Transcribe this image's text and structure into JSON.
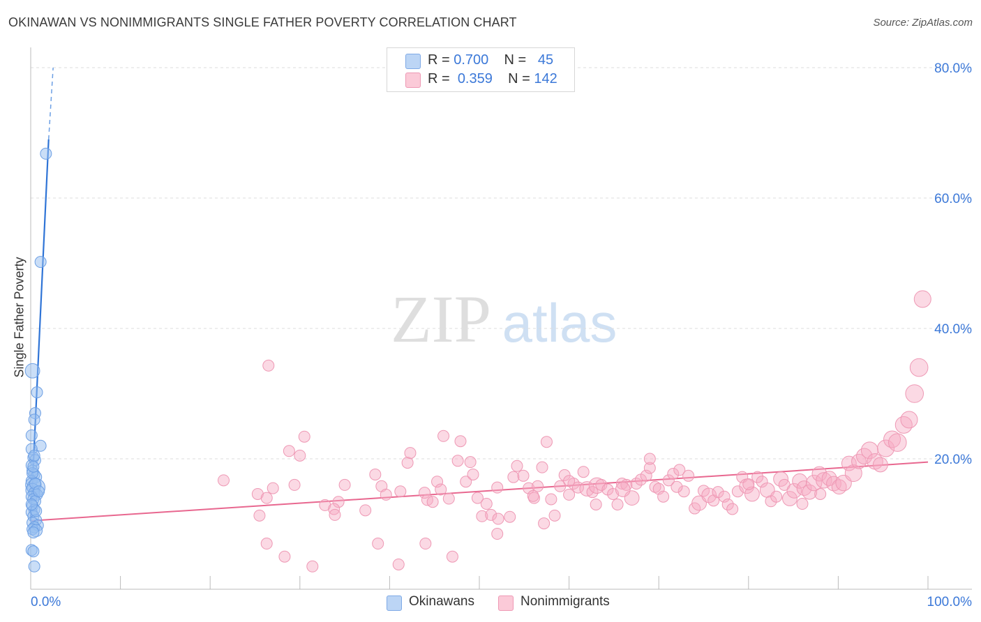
{
  "title": "OKINAWAN VS NONIMMIGRANTS SINGLE FATHER POVERTY CORRELATION CHART",
  "source": "Source: ZipAtlas.com",
  "watermark": {
    "zip": "ZIP",
    "atlas": "atlas"
  },
  "legend_top": [
    {
      "r_label": "R = ",
      "r_value": "0.700",
      "n_label": "N = ",
      "n_value": "45",
      "color": "#a9c8f2"
    },
    {
      "r_label": "R = ",
      "r_value": "0.359",
      "n_label": "N = ",
      "n_value": "142",
      "color": "#f7b8cb"
    }
  ],
  "legend_bottom": [
    {
      "label": "Okinawans",
      "color": "#a9c8f2"
    },
    {
      "label": "Nonimmigrants",
      "color": "#f7b8cb"
    }
  ],
  "chart_data": {
    "type": "scatter",
    "title": "OKINAWAN VS NONIMMIGRANTS SINGLE FATHER POVERTY CORRELATION CHART",
    "xlabel": "",
    "ylabel": "Single Father Poverty",
    "xlim": [
      0,
      100
    ],
    "ylim": [
      0,
      80
    ],
    "x_tick_labels": [
      "0.0%",
      "100.0%"
    ],
    "y_tick_labels": [
      "20.0%",
      "40.0%",
      "60.0%",
      "80.0%"
    ],
    "y_ticks": [
      20,
      40,
      60,
      80
    ],
    "grid": "horizontal dashed",
    "legend_position": "top-center",
    "series": [
      {
        "name": "Okinawans",
        "color": "#5b9be8",
        "trend": {
          "x0": 0.0,
          "y0": 10.5,
          "x1": 2.0,
          "y1": 69.0,
          "dashed_to": [
            2.5,
            80.0
          ]
        },
        "points": [
          [
            1.7,
            66.8,
            1
          ],
          [
            1.1,
            50.2,
            1
          ],
          [
            0.2,
            33.5,
            1.3
          ],
          [
            0.7,
            30.2,
            1
          ],
          [
            0.5,
            27.0,
            1
          ],
          [
            0.4,
            26.0,
            1
          ],
          [
            0.1,
            23.6,
            1
          ],
          [
            1.1,
            22.0,
            1
          ],
          [
            0.1,
            21.5,
            1
          ],
          [
            0.3,
            20.2,
            1
          ],
          [
            0.5,
            19.8,
            1
          ],
          [
            0.1,
            19.0,
            1
          ],
          [
            0.2,
            18.2,
            1
          ],
          [
            0.4,
            17.6,
            1
          ],
          [
            0.6,
            17.2,
            1
          ],
          [
            0.1,
            16.6,
            1
          ],
          [
            0.3,
            16.0,
            1.4
          ],
          [
            0.6,
            15.6,
            1.6
          ],
          [
            0.2,
            15.2,
            1.2
          ],
          [
            0.4,
            14.8,
            1
          ],
          [
            0.7,
            14.5,
            1
          ],
          [
            0.1,
            14.2,
            1
          ],
          [
            0.3,
            13.8,
            1
          ],
          [
            0.5,
            13.5,
            1
          ],
          [
            0.2,
            12.8,
            1
          ],
          [
            0.4,
            12.2,
            1
          ],
          [
            0.1,
            11.8,
            1
          ],
          [
            0.3,
            11.2,
            1
          ],
          [
            0.6,
            10.6,
            1
          ],
          [
            0.2,
            10.2,
            1
          ],
          [
            0.8,
            9.8,
            1
          ],
          [
            0.4,
            9.5,
            1
          ],
          [
            0.2,
            9.2,
            1
          ],
          [
            0.6,
            9.0,
            1.1
          ],
          [
            0.3,
            8.7,
            1
          ],
          [
            0.1,
            6.0,
            1
          ],
          [
            0.3,
            5.8,
            1
          ],
          [
            0.4,
            3.5,
            1
          ],
          [
            0.5,
            16.2,
            1
          ],
          [
            0.2,
            17.8,
            1
          ],
          [
            0.9,
            15.0,
            1
          ],
          [
            0.3,
            18.8,
            1
          ],
          [
            0.6,
            12.0,
            1
          ],
          [
            0.1,
            13.0,
            1
          ],
          [
            0.4,
            20.5,
            1
          ]
        ]
      },
      {
        "name": "Nonimmigrants",
        "color": "#ef7fa3",
        "trend": {
          "x0": 0.0,
          "y0": 10.5,
          "x1": 100.0,
          "y1": 19.5
        },
        "points": [
          [
            26.5,
            34.3,
            1
          ],
          [
            30.5,
            23.4,
            1
          ],
          [
            28.8,
            21.2,
            1
          ],
          [
            30.0,
            20.5,
            1
          ],
          [
            21.5,
            16.7,
            1
          ],
          [
            25.3,
            14.6,
            1
          ],
          [
            26.3,
            14.0,
            1
          ],
          [
            27.0,
            15.5,
            1
          ],
          [
            29.4,
            16.0,
            1
          ],
          [
            25.5,
            11.3,
            1
          ],
          [
            26.3,
            7.0,
            1
          ],
          [
            28.3,
            5.0,
            1
          ],
          [
            32.8,
            12.9,
            1
          ],
          [
            34.3,
            13.4,
            1
          ],
          [
            35.0,
            16.0,
            1
          ],
          [
            37.3,
            12.1,
            1
          ],
          [
            38.4,
            17.6,
            1
          ],
          [
            39.1,
            15.8,
            1
          ],
          [
            39.6,
            14.5,
            1
          ],
          [
            33.8,
            12.3,
            1
          ],
          [
            33.9,
            11.4,
            1
          ],
          [
            31.4,
            3.5,
            1
          ],
          [
            38.7,
            7.0,
            1
          ],
          [
            41.0,
            3.8,
            1
          ],
          [
            41.2,
            15.0,
            1
          ],
          [
            42.0,
            19.4,
            1
          ],
          [
            42.3,
            20.9,
            1
          ],
          [
            43.9,
            14.8,
            1
          ],
          [
            44.2,
            13.7,
            1
          ],
          [
            44.8,
            13.4,
            1
          ],
          [
            44.0,
            7.0,
            1
          ],
          [
            45.3,
            16.5,
            1
          ],
          [
            45.7,
            15.3,
            1
          ],
          [
            46.0,
            23.5,
            1
          ],
          [
            46.6,
            13.9,
            1
          ],
          [
            47.0,
            5.0,
            1
          ],
          [
            47.6,
            19.7,
            1
          ],
          [
            47.9,
            22.7,
            1
          ],
          [
            48.5,
            16.5,
            1
          ],
          [
            49.0,
            19.5,
            1
          ],
          [
            49.3,
            17.6,
            1
          ],
          [
            49.8,
            14.0,
            1
          ],
          [
            50.3,
            11.2,
            1
          ],
          [
            50.8,
            13.1,
            1
          ],
          [
            51.3,
            11.4,
            1
          ],
          [
            52.1,
            10.8,
            1
          ],
          [
            52.0,
            8.5,
            1
          ],
          [
            53.4,
            11.1,
            1
          ],
          [
            53.8,
            17.2,
            1
          ],
          [
            54.2,
            18.9,
            1
          ],
          [
            54.9,
            17.4,
            1
          ],
          [
            55.5,
            15.5,
            1
          ],
          [
            56.1,
            14.0,
            1
          ],
          [
            56.5,
            15.8,
            1
          ],
          [
            57.0,
            18.7,
            1
          ],
          [
            57.2,
            10.1,
            1
          ],
          [
            57.5,
            22.6,
            1
          ],
          [
            58.0,
            13.8,
            1
          ],
          [
            58.4,
            11.3,
            1
          ],
          [
            59.0,
            15.8,
            1
          ],
          [
            59.5,
            17.5,
            1
          ],
          [
            60.0,
            14.5,
            1
          ],
          [
            60.5,
            16.2,
            1
          ],
          [
            61.0,
            15.6,
            1
          ],
          [
            61.6,
            18.0,
            1
          ],
          [
            62.0,
            15.4,
            1.3
          ],
          [
            62.6,
            14.9,
            1
          ],
          [
            63.1,
            15.9,
            1.4
          ],
          [
            63.6,
            16.0,
            1
          ],
          [
            64.3,
            15.3,
            1
          ],
          [
            64.9,
            14.6,
            1
          ],
          [
            65.4,
            13.0,
            1
          ],
          [
            65.9,
            16.2,
            1
          ],
          [
            66.4,
            16.0,
            1
          ],
          [
            67.0,
            14.0,
            1.3
          ],
          [
            67.5,
            16.2,
            1
          ],
          [
            68.0,
            16.8,
            1
          ],
          [
            68.6,
            17.4,
            1
          ],
          [
            69.0,
            18.6,
            1
          ],
          [
            69.0,
            20.0,
            1
          ],
          [
            69.6,
            15.7,
            1
          ],
          [
            70.0,
            15.4,
            1
          ],
          [
            70.5,
            14.2,
            1
          ],
          [
            71.1,
            16.7,
            1
          ],
          [
            71.6,
            17.7,
            1
          ],
          [
            72.3,
            18.3,
            1
          ],
          [
            72.8,
            15.0,
            1
          ],
          [
            73.3,
            17.4,
            1
          ],
          [
            74.0,
            12.4,
            1
          ],
          [
            74.5,
            13.2,
            1.3
          ],
          [
            75.0,
            15.1,
            1
          ],
          [
            75.6,
            14.4,
            1.3
          ],
          [
            76.1,
            13.6,
            1
          ],
          [
            76.6,
            14.9,
            1
          ],
          [
            77.3,
            14.2,
            1
          ],
          [
            77.7,
            13.0,
            1
          ],
          [
            78.2,
            12.3,
            1
          ],
          [
            78.8,
            15.0,
            1
          ],
          [
            79.3,
            17.2,
            1
          ],
          [
            79.8,
            15.8,
            1.3
          ],
          [
            80.4,
            14.6,
            1.3
          ],
          [
            81.0,
            17.2,
            1
          ],
          [
            81.5,
            16.5,
            1
          ],
          [
            82.1,
            15.2,
            1.3
          ],
          [
            82.5,
            13.5,
            1
          ],
          [
            83.1,
            14.2,
            1
          ],
          [
            83.6,
            16.9,
            1.3
          ],
          [
            84.0,
            16.0,
            1
          ],
          [
            84.6,
            13.9,
            1.3
          ],
          [
            85.1,
            15.1,
            1.3
          ],
          [
            85.7,
            16.6,
            1.3
          ],
          [
            86.2,
            15.5,
            1.3
          ],
          [
            86.8,
            14.9,
            1.3
          ],
          [
            87.3,
            16.3,
            1.4
          ],
          [
            87.9,
            17.7,
            1.3
          ],
          [
            88.4,
            16.7,
            1.4
          ],
          [
            89.0,
            17.0,
            1.3
          ],
          [
            89.5,
            16.2,
            1.3
          ],
          [
            90.1,
            15.7,
            1.3
          ],
          [
            90.6,
            16.3,
            1.4
          ],
          [
            91.2,
            19.3,
            1.3
          ],
          [
            91.7,
            17.8,
            1.5
          ],
          [
            92.3,
            19.6,
            1.3
          ],
          [
            92.9,
            20.4,
            1.4
          ],
          [
            93.5,
            21.3,
            1.5
          ],
          [
            94.1,
            19.6,
            1.4
          ],
          [
            94.7,
            19.1,
            1.3
          ],
          [
            95.3,
            21.6,
            1.5
          ],
          [
            96.0,
            23.0,
            1.5
          ],
          [
            96.6,
            22.5,
            1.6
          ],
          [
            97.3,
            25.2,
            1.5
          ],
          [
            97.9,
            26.0,
            1.5
          ],
          [
            98.5,
            30.0,
            1.6
          ],
          [
            99.0,
            34.0,
            1.6
          ],
          [
            99.4,
            44.5,
            1.5
          ],
          [
            86.0,
            13.1,
            1
          ],
          [
            88.0,
            14.6,
            1
          ],
          [
            80.0,
            16.1,
            1
          ],
          [
            72.0,
            15.7,
            1
          ],
          [
            66.0,
            15.3,
            1.3
          ],
          [
            63.0,
            13.0,
            1
          ],
          [
            60.0,
            16.6,
            1
          ],
          [
            56.0,
            14.3,
            1
          ],
          [
            52.0,
            15.6,
            1
          ]
        ]
      }
    ]
  }
}
